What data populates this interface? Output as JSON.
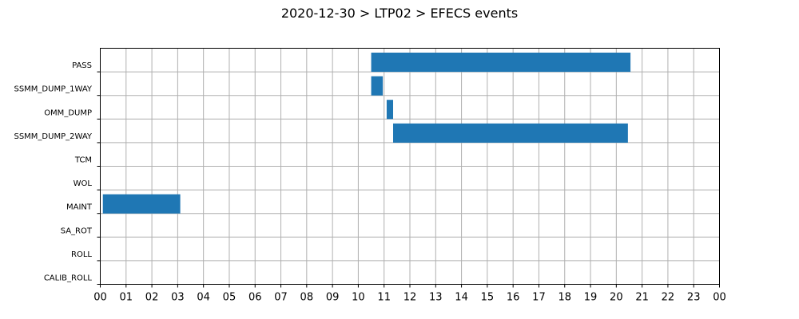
{
  "chart_data": {
    "type": "bar",
    "orientation": "horizontal-timeline",
    "title": "2020-12-30 > LTP02 > EFECS events",
    "xlabel": "",
    "ylabel": "",
    "xlim": [
      0,
      24
    ],
    "x_ticks": [
      "00",
      "01",
      "02",
      "03",
      "04",
      "05",
      "06",
      "07",
      "08",
      "09",
      "10",
      "11",
      "12",
      "13",
      "14",
      "15",
      "16",
      "17",
      "18",
      "19",
      "20",
      "21",
      "22",
      "23",
      "00"
    ],
    "categories": [
      "PASS",
      "SSMM_DUMP_1WAY",
      "OMM_DUMP",
      "SSMM_DUMP_2WAY",
      "TCM",
      "WOL",
      "MAINT",
      "SA_ROT",
      "ROLL",
      "CALIB_ROLL"
    ],
    "grid": true,
    "color": "#1f77b4",
    "events": [
      {
        "category": "PASS",
        "start": 10.5,
        "end": 20.55
      },
      {
        "category": "SSMM_DUMP_1WAY",
        "start": 10.5,
        "end": 10.95
      },
      {
        "category": "OMM_DUMP",
        "start": 11.1,
        "end": 11.35
      },
      {
        "category": "SSMM_DUMP_2WAY",
        "start": 11.35,
        "end": 20.45
      },
      {
        "category": "MAINT",
        "start": 0.1,
        "end": 3.1
      }
    ]
  }
}
